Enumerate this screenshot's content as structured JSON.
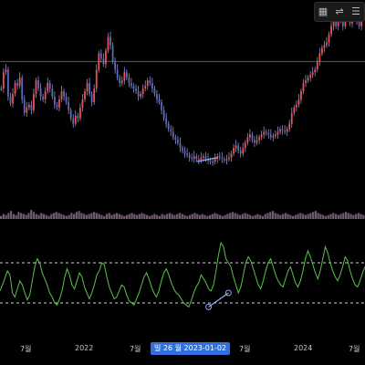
{
  "chart_data": [
    {
      "type": "line",
      "panel": "price",
      "style": "candlestick",
      "up_color": "#ef5350",
      "down_color": "#5c6bc0",
      "wick_color": "#8e8ecf",
      "series": [
        {
          "values": [
            66,
            78,
            80,
            60,
            55,
            62,
            70,
            68,
            74,
            58,
            48,
            52,
            54,
            50,
            62,
            72,
            66,
            60,
            58,
            64,
            70,
            66,
            60,
            54,
            52,
            58,
            64,
            60,
            56,
            50,
            44,
            40,
            46,
            44,
            52,
            58,
            64,
            70,
            62,
            56,
            66,
            80,
            92,
            88,
            84,
            94,
            104,
            98,
            86,
            80,
            74,
            70,
            72,
            78,
            74,
            70,
            68,
            66,
            64,
            60,
            62,
            66,
            68,
            72,
            70,
            66,
            62,
            58,
            56,
            50,
            44,
            40,
            36,
            34,
            30,
            28,
            26,
            22,
            20,
            18,
            17,
            15,
            14,
            16,
            14,
            13,
            15,
            16,
            14,
            13,
            12,
            12,
            14,
            16,
            15,
            14,
            13,
            14,
            15,
            18,
            22,
            24,
            20,
            18,
            22,
            26,
            30,
            32,
            28,
            26,
            28,
            30,
            32,
            34,
            33,
            32,
            30,
            31,
            32,
            34,
            36,
            35,
            34,
            36,
            40,
            48,
            52,
            54,
            58,
            64,
            70,
            72,
            74,
            76,
            78,
            80,
            86,
            92,
            96,
            98,
            100,
            106,
            112,
            120,
            112,
            118,
            116,
            112,
            120,
            118,
            114,
            122,
            118,
            116,
            112,
            118,
            124
          ]
        }
      ],
      "x_ticks": [
        {
          "label": "7월",
          "pos": 0.07
        },
        {
          "label": "2022",
          "pos": 0.22
        },
        {
          "label": "7월",
          "pos": 0.37
        },
        {
          "label": "7월",
          "pos": 0.67
        },
        {
          "label": "2024",
          "pos": 0.82
        },
        {
          "label": "7월",
          "pos": 0.97
        }
      ],
      "reference_line": {
        "value": 86,
        "color": "#5a5a5a"
      },
      "trendline": {
        "from_index": 84,
        "to_index": 93,
        "values": [
          12,
          15
        ],
        "color": "#8ea9ff"
      }
    },
    {
      "type": "bar",
      "panel": "volume",
      "color": "#6f5b6b",
      "values": [
        3,
        5,
        4,
        6,
        8,
        5,
        4,
        7,
        6,
        5,
        4,
        6,
        9,
        7,
        5,
        4,
        6,
        5,
        4,
        3,
        5,
        6,
        7,
        6,
        5,
        4,
        3,
        4,
        6,
        5,
        7,
        8,
        6,
        5,
        4,
        5,
        6,
        7,
        6,
        5,
        4,
        3,
        5,
        6,
        4,
        5,
        6,
        5,
        4,
        3,
        4,
        5,
        6,
        5,
        4,
        5,
        6,
        5,
        4,
        3,
        4,
        5,
        4,
        3,
        5,
        4,
        5,
        6,
        5,
        4,
        5,
        6,
        5,
        4,
        3,
        4,
        5,
        6,
        5,
        4,
        5,
        4,
        3,
        4,
        5,
        6,
        5,
        4,
        3,
        4,
        5,
        6,
        7,
        6,
        5,
        4,
        5,
        6,
        5,
        4,
        3,
        4,
        5,
        4,
        3,
        5,
        6,
        7,
        8,
        6,
        5,
        4,
        5,
        6,
        5,
        4,
        3,
        4,
        5,
        6,
        5,
        4,
        5,
        6,
        7,
        8,
        6,
        5,
        4,
        3,
        4,
        5,
        6,
        5,
        4,
        5,
        6,
        7,
        6,
        5,
        4,
        5,
        6,
        5,
        4
      ]
    },
    {
      "type": "line",
      "panel": "oscillator",
      "color": "#59c24a",
      "ylim": [
        0,
        100
      ],
      "upper_band": 70,
      "lower_band": 30,
      "band_color": "#d0d0d0",
      "values": [
        42,
        48,
        55,
        62,
        58,
        40,
        36,
        44,
        52,
        48,
        40,
        33,
        38,
        52,
        66,
        74,
        70,
        60,
        54,
        48,
        40,
        36,
        30,
        28,
        34,
        42,
        55,
        64,
        58,
        48,
        44,
        52,
        60,
        56,
        46,
        40,
        34,
        40,
        48,
        58,
        62,
        70,
        68,
        56,
        46,
        40,
        34,
        36,
        42,
        48,
        46,
        38,
        32,
        30,
        28,
        34,
        40,
        48,
        56,
        60,
        54,
        46,
        40,
        36,
        42,
        52,
        60,
        64,
        58,
        50,
        44,
        40,
        38,
        34,
        30,
        28,
        26,
        32,
        40,
        46,
        50,
        58,
        54,
        50,
        44,
        42,
        48,
        62,
        78,
        90,
        86,
        74,
        70,
        66,
        56,
        48,
        40,
        46,
        58,
        70,
        76,
        72,
        64,
        56,
        48,
        44,
        52,
        62,
        70,
        74,
        66,
        58,
        52,
        48,
        46,
        54,
        62,
        66,
        58,
        50,
        46,
        52,
        62,
        74,
        82,
        76,
        68,
        60,
        54,
        62,
        74,
        86,
        80,
        70,
        62,
        56,
        52,
        58,
        66,
        76,
        72,
        62,
        54,
        48,
        46,
        52,
        60,
        66
      ],
      "trendline": {
        "from_index": 84,
        "to_index": 92,
        "values": [
          26,
          40
        ],
        "color": "#8ea9ff"
      }
    }
  ],
  "crosshair_label": "일 26  월 2023-01-02",
  "toolbar": {
    "icons": [
      "calendar-icon",
      "sliders-icon",
      "list-icon"
    ]
  }
}
